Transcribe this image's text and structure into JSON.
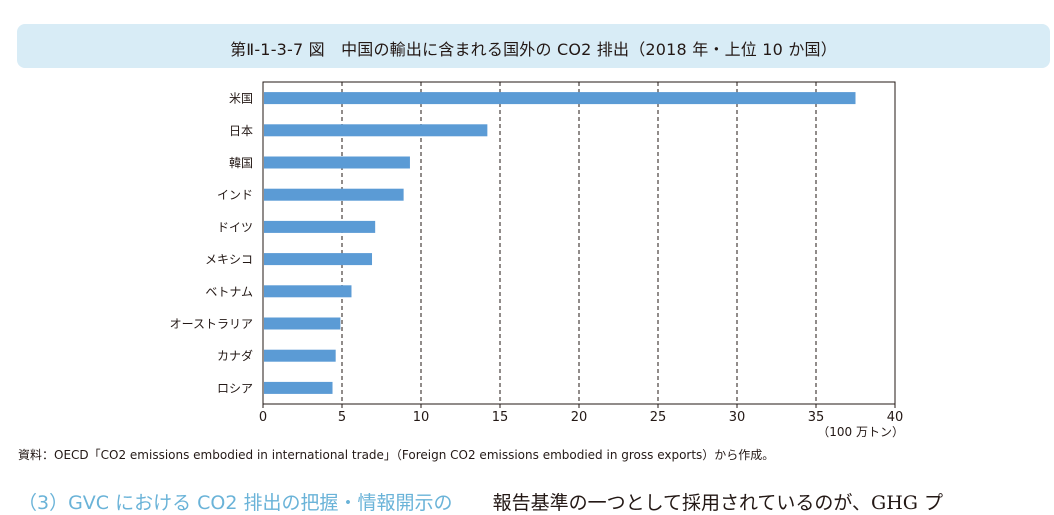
{
  "title": "第Ⅱ-1-3-7 図　中国の輸出に含まれる国外の CO2 排出（2018 年・上位 10 か国）",
  "source": "資料：OECD「CO2 emissions embodied in international trade」（Foreign CO2 emissions embodied in gross exports）から作成。",
  "bottom_heading": "（3）GVC における CO2 排出の把握・情報開示の",
  "bottom_text": "報告基準の一つとして採用されているのが、GHG プ",
  "colors": {
    "bar": "#5b9bd5",
    "title_bg": "#d8ecf6",
    "heading": "#6ab3d8"
  },
  "chart_data": {
    "type": "bar",
    "orientation": "horizontal",
    "categories": [
      "米国",
      "日本",
      "韓国",
      "インド",
      "ドイツ",
      "メキシコ",
      "ベトナム",
      "オーストラリア",
      "カナダ",
      "ロシア"
    ],
    "values": [
      37.5,
      14.2,
      9.3,
      8.9,
      7.1,
      6.9,
      5.6,
      4.9,
      4.6,
      4.4
    ],
    "xlim": [
      0,
      40
    ],
    "xticks": [
      0,
      5,
      10,
      15,
      20,
      25,
      30,
      35,
      40
    ],
    "xunit": "（100 万トン）",
    "grid": "vertical-dashed"
  }
}
